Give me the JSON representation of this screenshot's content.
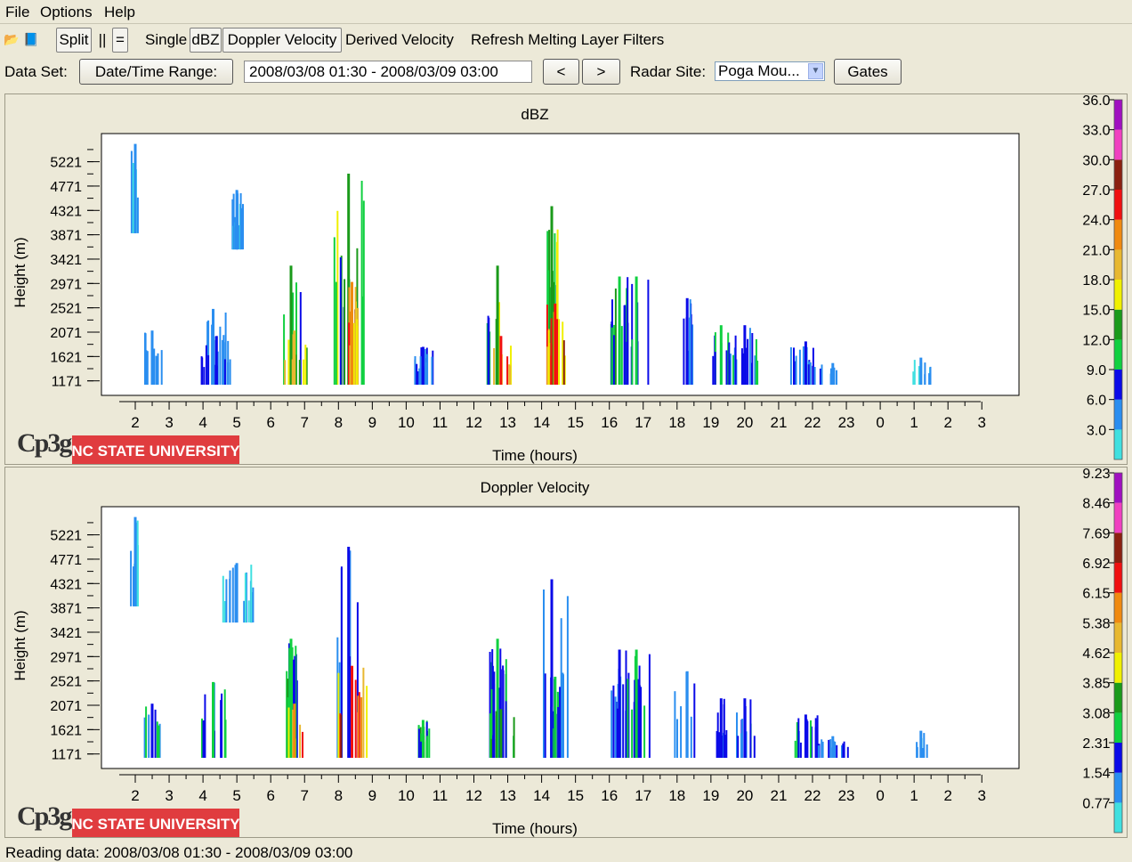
{
  "menu": [
    "File",
    "Options",
    "Help"
  ],
  "toolbar": {
    "icons": [
      "open-icon",
      "book-icon"
    ],
    "split_label": "Split",
    "parallel_label": "||",
    "equal_label": "=",
    "single_label": "Single",
    "dbz_label": "dBZ",
    "doppler_label": "Doppler Velocity",
    "derived_label": "Derived Velocity",
    "refresh_label": "Refresh Melting Layer Filters"
  },
  "dataset": {
    "label": "Data Set:",
    "range_button": "Date/Time Range:",
    "range_value": "2008/03/08 01:30 - 2008/03/09 03:00",
    "prev_label": "<",
    "next_label": ">",
    "site_label": "Radar Site:",
    "site_value": "Poga Mou...",
    "gates_label": "Gates"
  },
  "logo": {
    "cp3g": "Cp3g",
    "university": "NC STATE UNIVERSITY"
  },
  "colors": {
    "scale": [
      "#40e0e0",
      "#2a8ef0",
      "#0a0ae8",
      "#10d040",
      "#1a9a1a",
      "#f0f000",
      "#e8b830",
      "#f08a10",
      "#f01010",
      "#8b2010",
      "#f040c0",
      "#a010c0"
    ],
    "university_bg": "#e03c3f"
  },
  "status": "Reading data: 2008/03/08 01:30 - 2008/03/09 03:00",
  "chart_data": [
    {
      "type": "heatmap",
      "title": "dBZ",
      "xlabel": "Time (hours)",
      "ylabel": "Height (m)",
      "x_ticks": [
        "2",
        "3",
        "4",
        "5",
        "6",
        "7",
        "8",
        "9",
        "10",
        "11",
        "12",
        "13",
        "14",
        "15",
        "16",
        "17",
        "18",
        "19",
        "20",
        "21",
        "22",
        "23",
        "0",
        "1",
        "2",
        "3"
      ],
      "y_ticks": [
        "1171",
        "1621",
        "2071",
        "2521",
        "2971",
        "3421",
        "3871",
        "4321",
        "4771",
        "5221"
      ],
      "ylim": [
        1100,
        5560
      ],
      "colorbar_ticks": [
        "3.0",
        "6.0",
        "9.0",
        "12.0",
        "15.0",
        "18.0",
        "21.0",
        "24.0",
        "27.0",
        "30.0",
        "33.0",
        "36.0"
      ],
      "colorbar_range": [
        0,
        39
      ],
      "echoes": [
        {
          "t": 2.0,
          "bottom": 3900,
          "top": 5550,
          "v": 4
        },
        {
          "t": 2.5,
          "bottom": 1100,
          "top": 2100,
          "v": 5
        },
        {
          "t": 4.3,
          "bottom": 1100,
          "top": 2500,
          "v": 5
        },
        {
          "t": 4.4,
          "bottom": 1100,
          "top": 2000,
          "v": 8
        },
        {
          "t": 5.0,
          "bottom": 3600,
          "top": 4700,
          "v": 4
        },
        {
          "t": 6.6,
          "bottom": 1100,
          "top": 3300,
          "v": 13
        },
        {
          "t": 6.7,
          "bottom": 1100,
          "top": 2100,
          "v": 22
        },
        {
          "t": 8.3,
          "bottom": 1100,
          "top": 5000,
          "v": 15
        },
        {
          "t": 8.4,
          "bottom": 1100,
          "top": 3000,
          "v": 25
        },
        {
          "t": 10.5,
          "bottom": 1100,
          "top": 1800,
          "v": 8
        },
        {
          "t": 12.7,
          "bottom": 1100,
          "top": 3300,
          "v": 14
        },
        {
          "t": 12.8,
          "bottom": 1100,
          "top": 2000,
          "v": 26
        },
        {
          "t": 14.3,
          "bottom": 1100,
          "top": 4400,
          "v": 15
        },
        {
          "t": 14.4,
          "bottom": 1100,
          "top": 2600,
          "v": 27
        },
        {
          "t": 16.3,
          "bottom": 1100,
          "top": 3100,
          "v": 11
        },
        {
          "t": 16.8,
          "bottom": 1100,
          "top": 3100,
          "v": 10
        },
        {
          "t": 18.3,
          "bottom": 1100,
          "top": 2700,
          "v": 8
        },
        {
          "t": 19.3,
          "bottom": 1100,
          "top": 2200,
          "v": 10
        },
        {
          "t": 20.0,
          "bottom": 1100,
          "top": 2200,
          "v": 9
        },
        {
          "t": 21.8,
          "bottom": 1100,
          "top": 1900,
          "v": 7
        },
        {
          "t": 22.6,
          "bottom": 1100,
          "top": 1500,
          "v": 5
        },
        {
          "t": 25.2,
          "bottom": 1100,
          "top": 1600,
          "v": 4
        }
      ]
    },
    {
      "type": "heatmap",
      "title": "Doppler Velocity",
      "xlabel": "Time (hours)",
      "ylabel": "Height (m)",
      "x_ticks": [
        "2",
        "3",
        "4",
        "5",
        "6",
        "7",
        "8",
        "9",
        "10",
        "11",
        "12",
        "13",
        "14",
        "15",
        "16",
        "17",
        "18",
        "19",
        "20",
        "21",
        "22",
        "23",
        "0",
        "1",
        "2",
        "3"
      ],
      "y_ticks": [
        "1171",
        "1621",
        "2071",
        "2521",
        "2971",
        "3421",
        "3871",
        "4321",
        "4771",
        "5221"
      ],
      "ylim": [
        1100,
        5560
      ],
      "colorbar_ticks": [
        "0.77",
        "1.54",
        "2.31",
        "3.08",
        "3.85",
        "4.62",
        "5.38",
        "6.15",
        "6.92",
        "7.69",
        "8.46",
        "9.23"
      ],
      "colorbar_range": [
        0,
        10
      ],
      "echoes": [
        {
          "t": 2.0,
          "bottom": 3900,
          "top": 5550,
          "v": 1.0
        },
        {
          "t": 2.5,
          "bottom": 1100,
          "top": 2100,
          "v": 2.4
        },
        {
          "t": 4.3,
          "bottom": 1100,
          "top": 2500,
          "v": 2.5
        },
        {
          "t": 5.0,
          "bottom": 3600,
          "top": 4700,
          "v": 1.1
        },
        {
          "t": 6.6,
          "bottom": 1100,
          "top": 3300,
          "v": 3.0
        },
        {
          "t": 6.7,
          "bottom": 1100,
          "top": 2100,
          "v": 6.3
        },
        {
          "t": 8.3,
          "bottom": 1100,
          "top": 5000,
          "v": 2.0
        },
        {
          "t": 8.4,
          "bottom": 1100,
          "top": 2800,
          "v": 7.0
        },
        {
          "t": 10.5,
          "bottom": 1100,
          "top": 1800,
          "v": 3.2
        },
        {
          "t": 12.7,
          "bottom": 1100,
          "top": 3300,
          "v": 2.5
        },
        {
          "t": 12.8,
          "bottom": 1100,
          "top": 2000,
          "v": 3.4
        },
        {
          "t": 14.3,
          "bottom": 1100,
          "top": 4400,
          "v": 1.8
        },
        {
          "t": 14.4,
          "bottom": 1100,
          "top": 2600,
          "v": 3.0
        },
        {
          "t": 16.3,
          "bottom": 1100,
          "top": 3100,
          "v": 1.9
        },
        {
          "t": 16.8,
          "bottom": 1100,
          "top": 3100,
          "v": 2.6
        },
        {
          "t": 18.3,
          "bottom": 1100,
          "top": 2700,
          "v": 1.6
        },
        {
          "t": 19.3,
          "bottom": 1100,
          "top": 2200,
          "v": 1.9
        },
        {
          "t": 20.0,
          "bottom": 1100,
          "top": 2200,
          "v": 2.2
        },
        {
          "t": 21.8,
          "bottom": 1100,
          "top": 1900,
          "v": 2.4
        },
        {
          "t": 22.6,
          "bottom": 1100,
          "top": 1500,
          "v": 1.6
        },
        {
          "t": 25.2,
          "bottom": 1100,
          "top": 1600,
          "v": 1.1
        }
      ]
    }
  ]
}
